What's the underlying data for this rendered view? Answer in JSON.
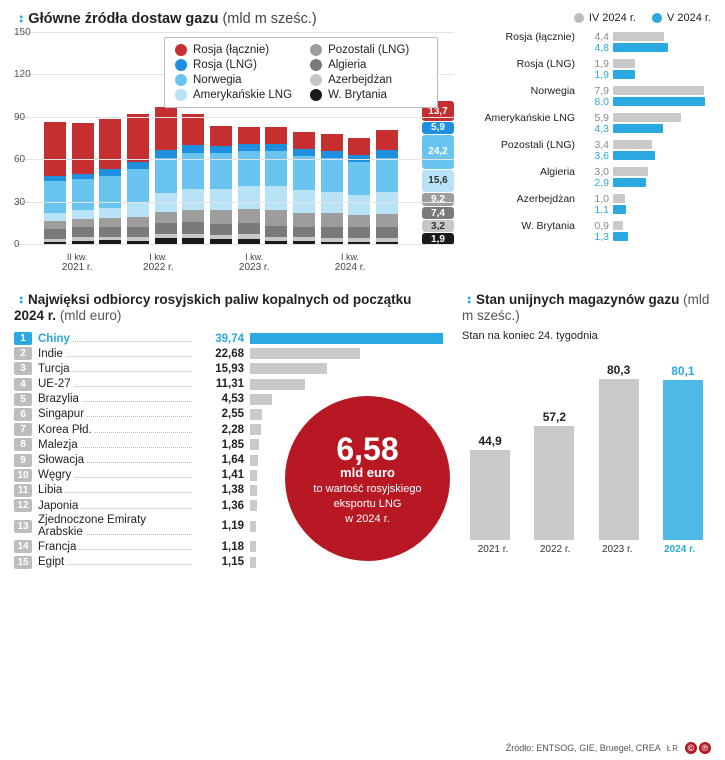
{
  "colors": {
    "grey_bar": "#c9c9c9",
    "blue": "#2aa8e0",
    "blue_light": "#4cb9e6",
    "red": "#b71823"
  },
  "stacked": {
    "title": "Główne źródła dostaw gazu",
    "unit": "(mld m sześc.)",
    "ylim": [
      0,
      150
    ],
    "yticks": [
      0,
      30,
      60,
      90,
      120,
      150
    ],
    "legend": [
      {
        "key": "Rosja (łącznie)",
        "color": "#c62f2f"
      },
      {
        "key": "Pozostali (LNG)",
        "color": "#9d9d9d"
      },
      {
        "key": "Rosja (LNG)",
        "color": "#1f8fe0"
      },
      {
        "key": "Algieria",
        "color": "#7a7a7a"
      },
      {
        "key": "Norwegia",
        "color": "#69c4ef"
      },
      {
        "key": "Azerbejdżan",
        "color": "#c7c7c7"
      },
      {
        "key": "Amerykańskie LNG",
        "color": "#b8e2f6"
      },
      {
        "key": "W. Brytania",
        "color": "#1a1a1a"
      }
    ],
    "series_order": [
      "W. Brytania",
      "Azerbejdżan",
      "Algieria",
      "Pozostali (LNG)",
      "Amerykańskie LNG",
      "Norwegia",
      "Rosja (LNG)",
      "Rosja (łącznie)"
    ],
    "series_colors": {
      "Rosja (łącznie)": "#c62f2f",
      "Rosja (LNG)": "#1f8fe0",
      "Norwegia": "#69c4ef",
      "Amerykańskie LNG": "#b8e2f6",
      "Pozostali (LNG)": "#9d9d9d",
      "Algieria": "#7a7a7a",
      "Azerbejdżan": "#c7c7c7",
      "W. Brytania": "#1a1a1a"
    },
    "x_groups": [
      {
        "year": "2021 r.",
        "first_kw": "II kw."
      },
      {
        "year": "2022 r.",
        "first_kw": "I kw."
      },
      {
        "year": "2023 r.",
        "first_kw": "I kw."
      },
      {
        "year": "2024 r.",
        "first_kw": "I kw."
      }
    ],
    "bars": [
      {
        "W. Brytania": 2.0,
        "Azerbejdżan": 2.5,
        "Algieria": 6.5,
        "Pozostali (LNG)": 6.0,
        "Amerykańskie LNG": 6.0,
        "Norwegia": 22.0,
        "Rosja (LNG)": 4.0,
        "Rosja (łącznie)": 38.0
      },
      {
        "W. Brytania": 3.0,
        "Azerbejdżan": 2.5,
        "Algieria": 7.0,
        "Pozostali (LNG)": 6.0,
        "Amerykańskie LNG": 6.0,
        "Norwegia": 22.0,
        "Rosja (LNG)": 4.0,
        "Rosja (łącznie)": 36.0
      },
      {
        "W. Brytania": 3.5,
        "Azerbejdżan": 2.5,
        "Algieria": 7.0,
        "Pozostali (LNG)": 6.0,
        "Amerykańskie LNG": 7.0,
        "Norwegia": 23.0,
        "Rosja (LNG)": 5.0,
        "Rosja (łącznie)": 35.0
      },
      {
        "W. Brytania": 3.0,
        "Azerbejdżan": 3.0,
        "Algieria": 7.0,
        "Pozostali (LNG)": 7.0,
        "Amerykańskie LNG": 10.0,
        "Norwegia": 24.0,
        "Rosja (LNG)": 5.0,
        "Rosja (łącznie)": 34.0
      },
      {
        "W. Brytania": 5.0,
        "Azerbejdżan": 3.0,
        "Algieria": 7.5,
        "Pozostali (LNG)": 8.0,
        "Amerykańskie LNG": 13.0,
        "Norwegia": 25.0,
        "Rosja (LNG)": 6.0,
        "Rosja (łącznie)": 30.0
      },
      {
        "W. Brytania": 5.0,
        "Azerbejdżan": 3.0,
        "Algieria": 8.0,
        "Pozostali (LNG)": 9.0,
        "Amerykańskie LNG": 15.0,
        "Norwegia": 25.0,
        "Rosja (LNG)": 6.0,
        "Rosja (łącznie)": 22.0
      },
      {
        "W. Brytania": 4.0,
        "Azerbejdżan": 3.0,
        "Algieria": 8.0,
        "Pozostali (LNG)": 10.0,
        "Amerykańskie LNG": 15.0,
        "Norwegia": 25.0,
        "Rosja (LNG)": 5.0,
        "Rosja (łącznie)": 14.0
      },
      {
        "W. Brytania": 4.5,
        "Azerbejdżan": 3.0,
        "Algieria": 8.0,
        "Pozostali (LNG)": 10.0,
        "Amerykańskie LNG": 16.0,
        "Norwegia": 25.0,
        "Rosja (LNG)": 5.0,
        "Rosja (łącznie)": 12.0
      },
      {
        "W. Brytania": 3.0,
        "Azerbejdżan": 3.0,
        "Algieria": 7.5,
        "Pozostali (LNG)": 11.0,
        "Amerykańskie LNG": 17.0,
        "Norwegia": 25.0,
        "Rosja (LNG)": 5.0,
        "Rosja (łącznie)": 12.0
      },
      {
        "W. Brytania": 2.5,
        "Azerbejdżan": 3.0,
        "Algieria": 7.5,
        "Pozostali (LNG)": 10.0,
        "Amerykańskie LNG": 16.0,
        "Norwegia": 24.0,
        "Rosja (LNG)": 5.0,
        "Rosja (łącznie)": 12.0
      },
      {
        "W. Brytania": 2.0,
        "Azerbejdżan": 3.0,
        "Algieria": 7.5,
        "Pozostali (LNG)": 10.0,
        "Amerykańskie LNG": 15.0,
        "Norwegia": 24.0,
        "Rosja (LNG)": 5.0,
        "Rosja (łącznie)": 12.0
      },
      {
        "W. Brytania": 2.0,
        "Azerbejdżan": 3.0,
        "Algieria": 7.5,
        "Pozostali (LNG)": 9.0,
        "Amerykańskie LNG": 14.0,
        "Norwegia": 23.0,
        "Rosja (LNG)": 5.0,
        "Rosja (łącznie)": 12.0
      },
      {
        "W. Brytania": 1.9,
        "Azerbejdżan": 3.2,
        "Algieria": 7.4,
        "Pozostali (LNG)": 9.2,
        "Amerykańskie LNG": 15.6,
        "Norwegia": 24.2,
        "Rosja (LNG)": 5.9,
        "Rosja (łącznie)": 13.7
      }
    ],
    "callouts": [
      {
        "label": "1,9",
        "color": "#1a1a1a"
      },
      {
        "label": "3,2",
        "color": "#c7c7c7",
        "text": "#333"
      },
      {
        "label": "7,4",
        "color": "#7a7a7a"
      },
      {
        "label": "9,2",
        "color": "#9d9d9d"
      },
      {
        "label": "15,6",
        "color": "#b8e2f6",
        "text": "#333"
      },
      {
        "label": "24,2",
        "color": "#69c4ef"
      },
      {
        "label": "5,9",
        "color": "#1f8fe0"
      },
      {
        "label": "13,7",
        "color": "#c62f2f"
      }
    ]
  },
  "compare": {
    "header": [
      {
        "label": "IV 2024 r.",
        "color": "#bdbdbd"
      },
      {
        "label": "V 2024 r.",
        "color": "#2aa8e0"
      }
    ],
    "max": 8.5,
    "rows": [
      {
        "label": "Rosja (łącznie)",
        "a": 4.4,
        "b": 4.8
      },
      {
        "label": "Rosja (LNG)",
        "a": 1.9,
        "b": 1.9
      },
      {
        "label": "Norwegia",
        "a": 7.9,
        "b": 8.0
      },
      {
        "label": "Amerykańskie LNG",
        "a": 5.9,
        "b": 4.3
      },
      {
        "label": "Pozostali (LNG)",
        "a": 3.4,
        "b": 3.6
      },
      {
        "label": "Algieria",
        "a": 3.0,
        "b": 2.9
      },
      {
        "label": "Azerbejdżan",
        "a": 1.0,
        "b": 1.1
      },
      {
        "label": "W. Brytania",
        "a": 0.9,
        "b": 1.3
      }
    ]
  },
  "buyers": {
    "title": "Najwięksi odbiorcy rosyjskich paliw kopalnych od początku 2024 r.",
    "unit": "(mld euro)",
    "max": 40,
    "rows": [
      {
        "name": "Chiny",
        "val": 39.74,
        "hl": true
      },
      {
        "name": "Indie",
        "val": 22.68
      },
      {
        "name": "Turcja",
        "val": 15.93
      },
      {
        "name": "UE-27",
        "val": 11.31
      },
      {
        "name": "Brazylia",
        "val": 4.53
      },
      {
        "name": "Singapur",
        "val": 2.55
      },
      {
        "name": "Korea Płd.",
        "val": 2.28
      },
      {
        "name": "Malezja",
        "val": 1.85
      },
      {
        "name": "Słowacja",
        "val": 1.64
      },
      {
        "name": "Węgry",
        "val": 1.41
      },
      {
        "name": "Libia",
        "val": 1.38
      },
      {
        "name": "Japonia",
        "val": 1.36
      },
      {
        "name": "Zjednoczone Emiraty Arabskie",
        "val": 1.19
      },
      {
        "name": "Francja",
        "val": 1.18
      },
      {
        "name": "Egipt",
        "val": 1.15
      }
    ]
  },
  "red_circle": {
    "big": "6,58",
    "mid": "mld euro",
    "line1": "to wartość rosyjskiego",
    "line2": "eksportu LNG",
    "line3": "w 2024 r."
  },
  "storage": {
    "title": "Stan unijnych magazynów gazu",
    "unit": "(mld m sześc.)",
    "subtitle": "Stan na koniec 24. tygodnia",
    "max": 85,
    "bars": [
      {
        "x": "2021 r.",
        "val": 44.9
      },
      {
        "x": "2022 r.",
        "val": 57.2
      },
      {
        "x": "2023 r.",
        "val": 80.3
      },
      {
        "x": "2024 r.",
        "val": 80.1,
        "hl": true
      }
    ]
  },
  "footer": {
    "source": "Źródło: ENTSOG, GIE, Bruegel, CREA",
    "lr": "ŁR",
    "cp": [
      "©",
      "℗"
    ]
  }
}
